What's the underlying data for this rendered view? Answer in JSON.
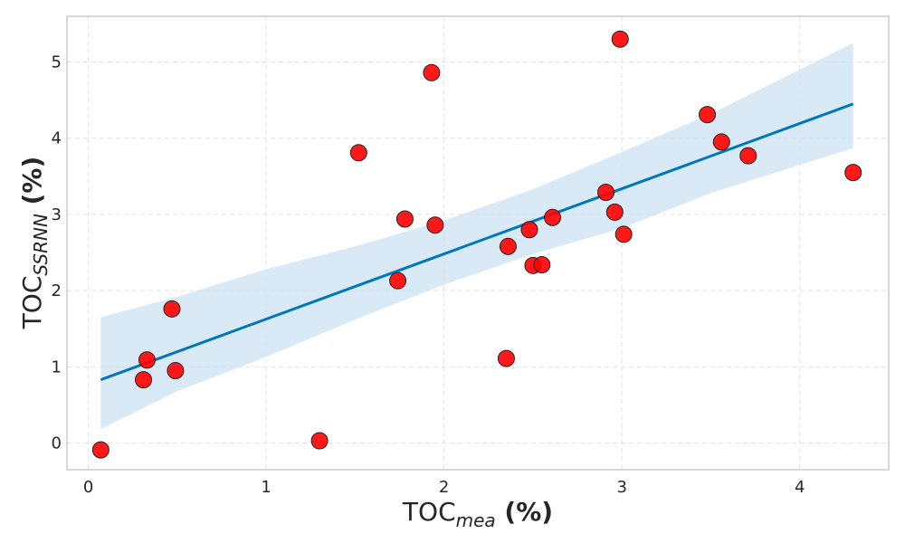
{
  "chart_data": {
    "type": "scatter",
    "xlabel": {
      "main": "TOC",
      "sub": "mea",
      "suffix": " (%)"
    },
    "ylabel": {
      "main": "TOC",
      "sub": "SSRNN",
      "suffix": " (%)"
    },
    "xlim": [
      -0.12,
      4.5
    ],
    "ylim": [
      -0.35,
      5.6
    ],
    "xticks": [
      0,
      1,
      2,
      3,
      4
    ],
    "yticks": [
      0,
      1,
      2,
      3,
      4,
      5
    ],
    "grid": true,
    "colors": {
      "points": "#ff0000",
      "fit_line": "#0077bb",
      "confidence_band": "#cfe4f3"
    },
    "points": [
      {
        "x": 0.07,
        "y": -0.09
      },
      {
        "x": 0.31,
        "y": 0.83
      },
      {
        "x": 0.33,
        "y": 1.09
      },
      {
        "x": 0.47,
        "y": 1.76
      },
      {
        "x": 0.49,
        "y": 0.95
      },
      {
        "x": 1.3,
        "y": 0.03
      },
      {
        "x": 1.52,
        "y": 3.81
      },
      {
        "x": 1.74,
        "y": 2.13
      },
      {
        "x": 1.78,
        "y": 2.94
      },
      {
        "x": 1.93,
        "y": 4.86
      },
      {
        "x": 1.95,
        "y": 2.86
      },
      {
        "x": 2.35,
        "y": 1.11
      },
      {
        "x": 2.36,
        "y": 2.58
      },
      {
        "x": 2.48,
        "y": 2.8
      },
      {
        "x": 2.5,
        "y": 2.33
      },
      {
        "x": 2.55,
        "y": 2.34
      },
      {
        "x": 2.61,
        "y": 2.96
      },
      {
        "x": 2.91,
        "y": 3.29
      },
      {
        "x": 2.96,
        "y": 3.03
      },
      {
        "x": 2.99,
        "y": 5.3
      },
      {
        "x": 3.01,
        "y": 2.74
      },
      {
        "x": 3.48,
        "y": 4.31
      },
      {
        "x": 3.56,
        "y": 3.95
      },
      {
        "x": 3.71,
        "y": 3.77
      },
      {
        "x": 4.3,
        "y": 3.55
      }
    ],
    "fit_line": [
      {
        "x": 0.07,
        "y": 0.83
      },
      {
        "x": 4.3,
        "y": 4.45
      }
    ],
    "confidence_band": {
      "upper": [
        {
          "x": 0.07,
          "y": 1.65
        },
        {
          "x": 0.5,
          "y": 1.92
        },
        {
          "x": 1.0,
          "y": 2.28
        },
        {
          "x": 1.5,
          "y": 2.58
        },
        {
          "x": 2.0,
          "y": 2.92
        },
        {
          "x": 2.5,
          "y": 3.33
        },
        {
          "x": 3.0,
          "y": 3.82
        },
        {
          "x": 3.5,
          "y": 4.32
        },
        {
          "x": 4.0,
          "y": 4.9
        },
        {
          "x": 4.3,
          "y": 5.25
        }
      ],
      "lower": [
        {
          "x": 0.07,
          "y": 0.18
        },
        {
          "x": 0.5,
          "y": 0.68
        },
        {
          "x": 1.0,
          "y": 1.13
        },
        {
          "x": 1.5,
          "y": 1.62
        },
        {
          "x": 2.0,
          "y": 2.08
        },
        {
          "x": 2.5,
          "y": 2.48
        },
        {
          "x": 3.0,
          "y": 2.82
        },
        {
          "x": 3.5,
          "y": 3.28
        },
        {
          "x": 4.0,
          "y": 3.65
        },
        {
          "x": 4.3,
          "y": 3.87
        }
      ]
    }
  }
}
